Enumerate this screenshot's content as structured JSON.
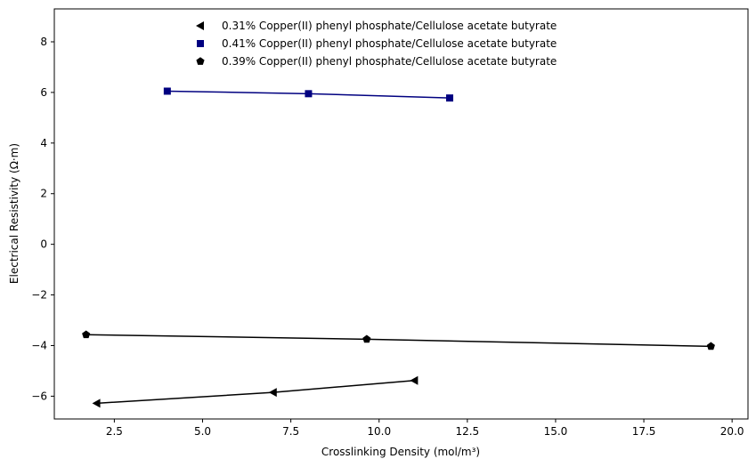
{
  "chart_data": {
    "type": "line",
    "xlabel": "Crosslinking Density (mol/m³)",
    "ylabel": "Electrical Resistivity (Ω·m)",
    "xlim": [
      0.8,
      20.45
    ],
    "ylim": [
      -6.9,
      9.3
    ],
    "xticks": [
      2.5,
      5.0,
      7.5,
      10.0,
      12.5,
      15.0,
      17.5,
      20.0
    ],
    "xtick_labels": [
      "2.5",
      "5.0",
      "7.5",
      "10.0",
      "12.5",
      "15.0",
      "17.5",
      "20.0"
    ],
    "yticks": [
      -6,
      -4,
      -2,
      0,
      2,
      4,
      6,
      8
    ],
    "ytick_labels": [
      "−6",
      "−4",
      "−2",
      "0",
      "2",
      "4",
      "6",
      "8"
    ],
    "grid": false,
    "legend_position": "top-center",
    "series": [
      {
        "name": "0.31% Copper(II) phenyl phosphate/Cellulose acetate butyrate",
        "marker": "triangle-left",
        "color": "#000000",
        "points": [
          [
            2.0,
            -6.28
          ],
          [
            7.0,
            -5.85
          ],
          [
            11.0,
            -5.38
          ]
        ]
      },
      {
        "name": "0.41% Copper(II) phenyl phosphate/Cellulose acetate butyrate",
        "marker": "square",
        "color": "#000080",
        "points": [
          [
            4.0,
            6.05
          ],
          [
            8.0,
            5.95
          ],
          [
            12.0,
            5.78
          ]
        ]
      },
      {
        "name": "0.39% Copper(II) phenyl phosphate/Cellulose acetate butyrate",
        "marker": "pentagon",
        "color": "#000000",
        "points": [
          [
            1.7,
            -3.57
          ],
          [
            9.65,
            -3.75
          ],
          [
            19.4,
            -4.03
          ]
        ]
      }
    ]
  }
}
